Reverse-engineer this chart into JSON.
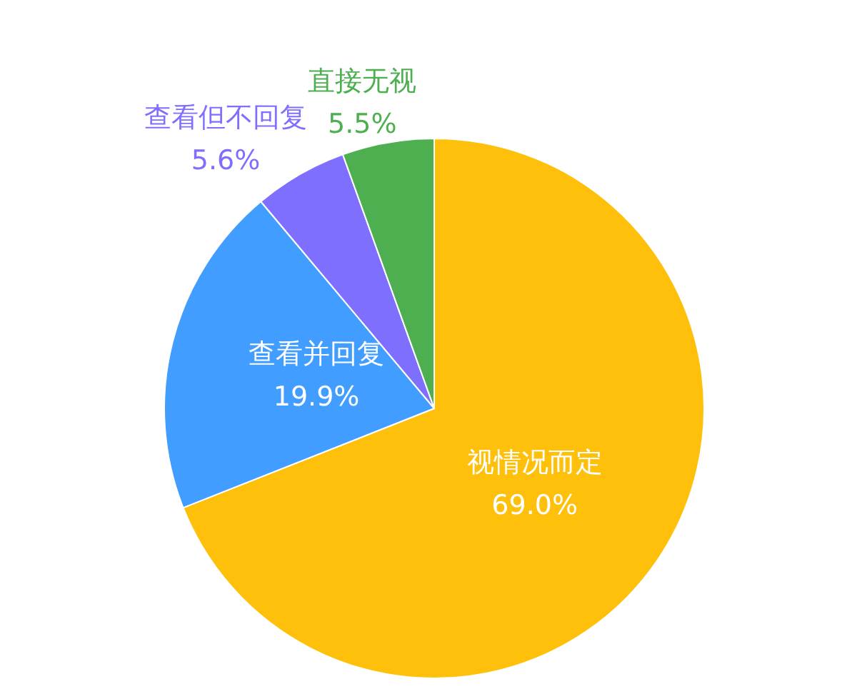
{
  "chart_data": {
    "type": "pie",
    "categories": [
      "视情况而定",
      "查看并回复",
      "查看但不回复",
      "直接无视"
    ],
    "values": [
      69.0,
      19.9,
      5.6,
      5.5
    ],
    "colors": [
      "#fec00a",
      "#419dff",
      "#7e6ffe",
      "#4daf50"
    ],
    "value_labels": [
      "69.0%",
      "19.9%",
      "5.6%",
      "5.5%"
    ]
  }
}
